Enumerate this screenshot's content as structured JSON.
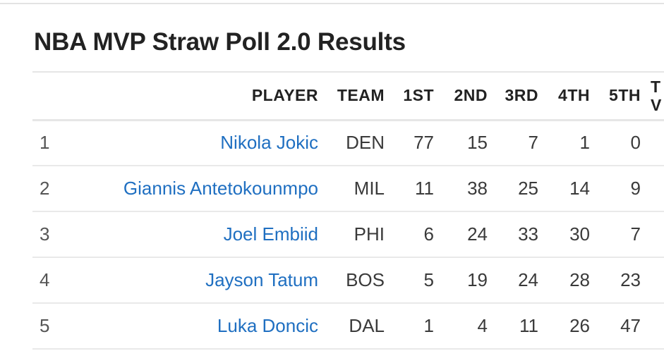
{
  "title": "NBA MVP Straw Poll 2.0 Results",
  "columns": {
    "rank": "",
    "player": "PLAYER",
    "team": "TEAM",
    "first": "1ST",
    "second": "2ND",
    "third": "3RD",
    "fourth": "4TH",
    "fifth": "5TH",
    "total_votes_line1": "T",
    "total_votes_line2": "V"
  },
  "rows": [
    {
      "rank": "1",
      "player": "Nikola Jokic",
      "team": "DEN",
      "first": "77",
      "second": "15",
      "third": "7",
      "fourth": "1",
      "fifth": "0"
    },
    {
      "rank": "2",
      "player": "Giannis Antetokounmpo",
      "team": "MIL",
      "first": "11",
      "second": "38",
      "third": "25",
      "fourth": "14",
      "fifth": "9"
    },
    {
      "rank": "3",
      "player": "Joel Embiid",
      "team": "PHI",
      "first": "6",
      "second": "24",
      "third": "33",
      "fourth": "30",
      "fifth": "7"
    },
    {
      "rank": "4",
      "player": "Jayson Tatum",
      "team": "BOS",
      "first": "5",
      "second": "19",
      "third": "24",
      "fourth": "28",
      "fifth": "23"
    },
    {
      "rank": "5",
      "player": "Luka Doncic",
      "team": "DAL",
      "first": "1",
      "second": "4",
      "third": "11",
      "fourth": "26",
      "fifth": "47"
    }
  ],
  "colors": {
    "link": "#1f6fc1",
    "text": "#222222",
    "divider": "#e6e6e6"
  }
}
